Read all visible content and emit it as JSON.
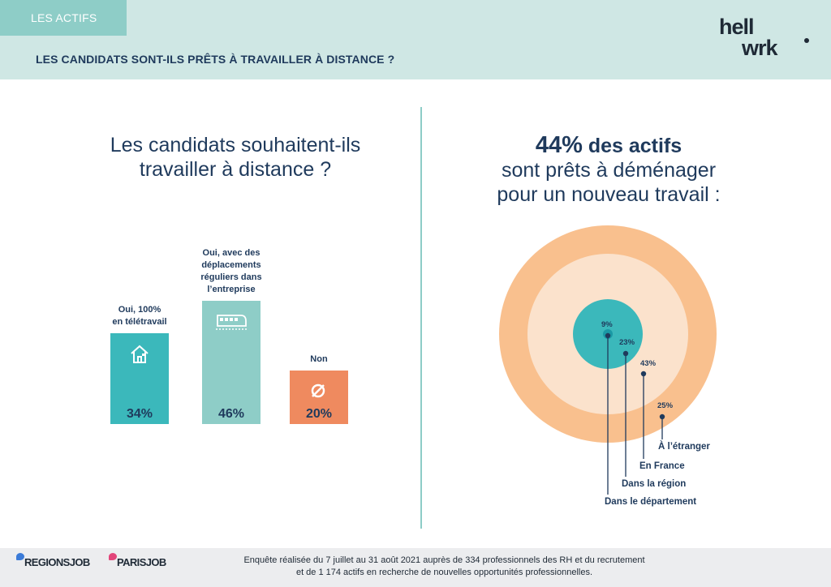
{
  "header": {
    "section_tag": "LES ACTIFS",
    "title": "LES CANDIDATS SONT-ILS PRÊTS À TRAVAILLER À DISTANCE ?",
    "logo_text_top": "hell",
    "logo_text_bottom": "wrk"
  },
  "left": {
    "title_line1": "Les candidats souhaitent-ils",
    "title_line2": "travailler à distance ?"
  },
  "right": {
    "title_percent": "44%",
    "title_bold_rest": " des actifs",
    "title_line2": "sont prêts à déménager",
    "title_line3": "pour un nouveau travail :"
  },
  "chart_data": [
    {
      "type": "bar",
      "title": "Les candidats souhaitent-ils travailler à distance ?",
      "categories": [
        "Oui, 100% en télétravail",
        "Oui, avec des déplacements réguliers dans l’entreprise",
        "Non"
      ],
      "label_lines": [
        [
          "Oui, 100%",
          "en télétravail"
        ],
        [
          "Oui, avec des",
          "déplacements",
          "réguliers dans",
          "l’entreprise"
        ],
        [
          "Non"
        ]
      ],
      "values": [
        34,
        46,
        20
      ],
      "value_labels": [
        "34%",
        "46%",
        "20%"
      ],
      "colors": [
        "#3bb8bb",
        "#8ecdc7",
        "#ef8a5f"
      ],
      "icons": [
        "house-icon",
        "train-icon",
        "no-symbol-icon"
      ],
      "ylim": [
        0,
        46
      ]
    },
    {
      "type": "pie",
      "style": "concentric-rings",
      "title": "44% des actifs sont prêts à déménager pour un nouveau travail :",
      "categories": [
        "Dans le département",
        "Dans la région",
        "En France",
        "À l’étranger"
      ],
      "values": [
        9,
        23,
        43,
        25
      ],
      "value_labels": [
        "9%",
        "23%",
        "43%",
        "25%"
      ],
      "colors": [
        "#1a99a5",
        "#3bb8bb",
        "#fbe2cc",
        "#f9c08e"
      ]
    }
  ],
  "footer": {
    "brand1": "REGIONSJOB",
    "brand2": "PARISJOB",
    "note_line1": "Enquête réalisée du 7 juillet au 31 août 2021 auprès de 334 professionnels des RH et du recrutement",
    "note_line2": "et de 1 174 actifs en recherche de nouvelles opportunités professionnelles."
  }
}
